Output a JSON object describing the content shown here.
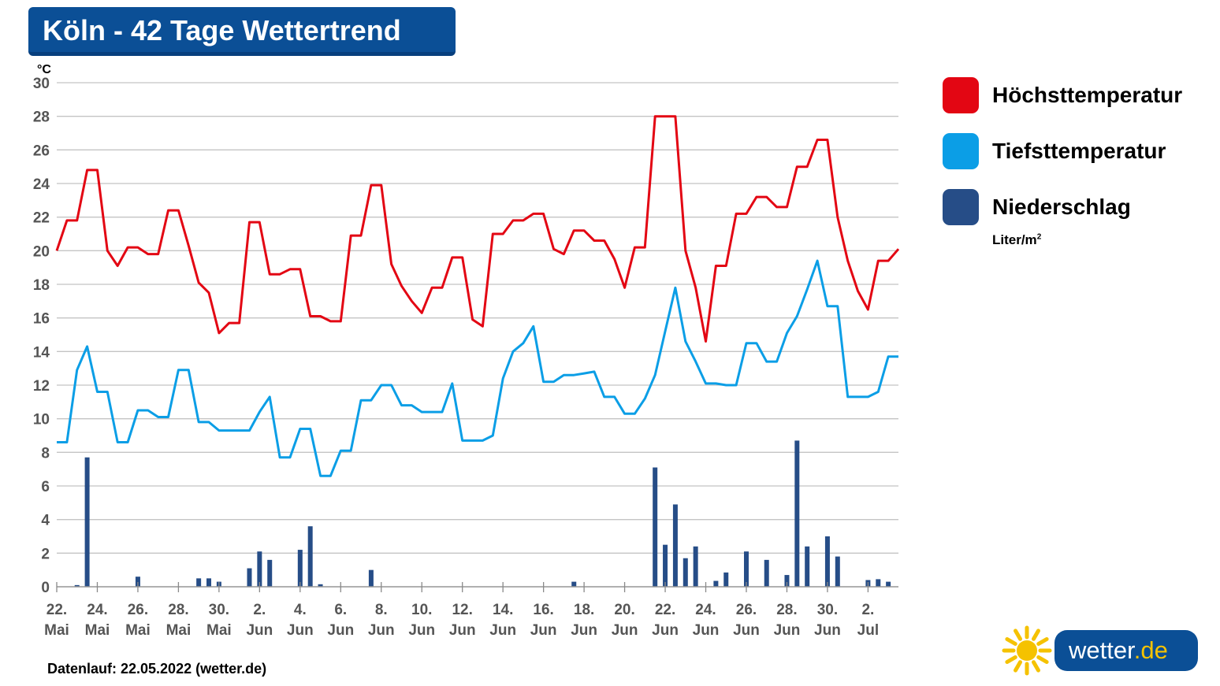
{
  "title": "Köln - 42 Tage Wettertrend",
  "footer": "Datenlauf: 22.05.2022 (wetter.de)",
  "legend": {
    "items": [
      {
        "label": "Höchsttemperatur",
        "color": "#e30613"
      },
      {
        "label": "Tiefsttemperatur",
        "color": "#0b9ee6"
      },
      {
        "label": "Niederschlag",
        "color": "#264d87"
      }
    ],
    "precip_unit": "Liter/m",
    "precip_unit_sup": "2"
  },
  "logo": {
    "name": "wetter",
    "tld": ".de",
    "icon": "sun-icon"
  },
  "chart_data": {
    "type": "line",
    "title": "Köln - 42 Tage Wettertrend",
    "y_unit": "°C",
    "ylim": [
      0,
      30
    ],
    "yticks": [
      0,
      2,
      4,
      6,
      8,
      10,
      12,
      14,
      16,
      18,
      20,
      22,
      24,
      26,
      28,
      30
    ],
    "grid": true,
    "legend_position": "right",
    "x_ticks": [
      {
        "day": 0,
        "l1": "22.",
        "l2": "Mai"
      },
      {
        "day": 2,
        "l1": "24.",
        "l2": "Mai"
      },
      {
        "day": 4,
        "l1": "26.",
        "l2": "Mai"
      },
      {
        "day": 6,
        "l1": "28.",
        "l2": "Mai"
      },
      {
        "day": 8,
        "l1": "30.",
        "l2": "Mai"
      },
      {
        "day": 10,
        "l1": "2.",
        "l2": "Jun"
      },
      {
        "day": 12,
        "l1": "4.",
        "l2": "Jun"
      },
      {
        "day": 14,
        "l1": "6.",
        "l2": "Jun"
      },
      {
        "day": 16,
        "l1": "8.",
        "l2": "Jun"
      },
      {
        "day": 18,
        "l1": "10.",
        "l2": "Jun"
      },
      {
        "day": 20,
        "l1": "12.",
        "l2": "Jun"
      },
      {
        "day": 22,
        "l1": "14.",
        "l2": "Jun"
      },
      {
        "day": 24,
        "l1": "16.",
        "l2": "Jun"
      },
      {
        "day": 26,
        "l1": "18.",
        "l2": "Jun"
      },
      {
        "day": 28,
        "l1": "20.",
        "l2": "Jun"
      },
      {
        "day": 30,
        "l1": "22.",
        "l2": "Jun"
      },
      {
        "day": 32,
        "l1": "24.",
        "l2": "Jun"
      },
      {
        "day": 34,
        "l1": "26.",
        "l2": "Jun"
      },
      {
        "day": 36,
        "l1": "28.",
        "l2": "Jun"
      },
      {
        "day": 38,
        "l1": "30.",
        "l2": "Jun"
      },
      {
        "day": 40,
        "l1": "2.",
        "l2": "Jul"
      }
    ],
    "series": [
      {
        "name": "Höchsttemperatur",
        "color": "#e30613",
        "points": [
          [
            0,
            20.0
          ],
          [
            0.5,
            21.8
          ],
          [
            1,
            21.8
          ],
          [
            1.5,
            24.8
          ],
          [
            2,
            24.8
          ],
          [
            2.5,
            20.0
          ],
          [
            3,
            19.1
          ],
          [
            3.5,
            20.2
          ],
          [
            4,
            20.2
          ],
          [
            4.5,
            19.8
          ],
          [
            5,
            19.8
          ],
          [
            5.5,
            22.4
          ],
          [
            6,
            22.4
          ],
          [
            6.5,
            20.3
          ],
          [
            7,
            18.1
          ],
          [
            7.5,
            17.5
          ],
          [
            8,
            15.1
          ],
          [
            8.5,
            15.7
          ],
          [
            9,
            15.7
          ],
          [
            9.5,
            21.7
          ],
          [
            10,
            21.7
          ],
          [
            10.5,
            18.6
          ],
          [
            11,
            18.6
          ],
          [
            11.5,
            18.9
          ],
          [
            12,
            18.9
          ],
          [
            12.5,
            16.1
          ],
          [
            13,
            16.1
          ],
          [
            13.5,
            15.8
          ],
          [
            14,
            15.8
          ],
          [
            14.5,
            20.9
          ],
          [
            15,
            20.9
          ],
          [
            15.5,
            23.9
          ],
          [
            16,
            23.9
          ],
          [
            16.5,
            19.2
          ],
          [
            17,
            17.9
          ],
          [
            17.5,
            17.0
          ],
          [
            18,
            16.3
          ],
          [
            18.5,
            17.8
          ],
          [
            19,
            17.8
          ],
          [
            19.5,
            19.6
          ],
          [
            20,
            19.6
          ],
          [
            20.5,
            15.9
          ],
          [
            21,
            15.5
          ],
          [
            21.5,
            21.0
          ],
          [
            22,
            21.0
          ],
          [
            22.5,
            21.8
          ],
          [
            23,
            21.8
          ],
          [
            23.5,
            22.2
          ],
          [
            24,
            22.2
          ],
          [
            24.5,
            20.1
          ],
          [
            25,
            19.8
          ],
          [
            25.5,
            21.2
          ],
          [
            26,
            21.2
          ],
          [
            26.5,
            20.6
          ],
          [
            27,
            20.6
          ],
          [
            27.5,
            19.5
          ],
          [
            28,
            17.8
          ],
          [
            28.5,
            20.2
          ],
          [
            29,
            20.2
          ],
          [
            29.5,
            28.0
          ],
          [
            30,
            28.0
          ],
          [
            30.5,
            28.0
          ],
          [
            31,
            20.0
          ],
          [
            31.5,
            17.8
          ],
          [
            32,
            14.6
          ],
          [
            32.5,
            19.1
          ],
          [
            33,
            19.1
          ],
          [
            33.5,
            22.2
          ],
          [
            34,
            22.2
          ],
          [
            34.5,
            23.2
          ],
          [
            35,
            23.2
          ],
          [
            35.5,
            22.6
          ],
          [
            36,
            22.6
          ],
          [
            36.5,
            25.0
          ],
          [
            37,
            25.0
          ],
          [
            37.5,
            26.6
          ],
          [
            38,
            26.6
          ],
          [
            38.5,
            22.0
          ],
          [
            39,
            19.4
          ],
          [
            39.5,
            17.6
          ],
          [
            40,
            16.5
          ],
          [
            40.5,
            19.4
          ],
          [
            41,
            19.4
          ],
          [
            41.5,
            20.1
          ]
        ]
      },
      {
        "name": "Tiefsttemperatur",
        "color": "#0b9ee6",
        "points": [
          [
            0,
            8.6
          ],
          [
            0.5,
            8.6
          ],
          [
            1,
            12.9
          ],
          [
            1.5,
            14.3
          ],
          [
            2,
            11.6
          ],
          [
            2.5,
            11.6
          ],
          [
            3,
            8.6
          ],
          [
            3.5,
            8.6
          ],
          [
            4,
            10.5
          ],
          [
            4.5,
            10.5
          ],
          [
            5,
            10.1
          ],
          [
            5.5,
            10.1
          ],
          [
            6,
            12.9
          ],
          [
            6.5,
            12.9
          ],
          [
            7,
            9.8
          ],
          [
            7.5,
            9.8
          ],
          [
            8,
            9.3
          ],
          [
            8.5,
            9.3
          ],
          [
            9,
            9.3
          ],
          [
            9.5,
            9.3
          ],
          [
            10,
            10.4
          ],
          [
            10.5,
            11.3
          ],
          [
            11,
            7.7
          ],
          [
            11.5,
            7.7
          ],
          [
            12,
            9.4
          ],
          [
            12.5,
            9.4
          ],
          [
            13,
            6.6
          ],
          [
            13.5,
            6.6
          ],
          [
            14,
            8.1
          ],
          [
            14.5,
            8.1
          ],
          [
            15,
            11.1
          ],
          [
            15.5,
            11.1
          ],
          [
            16,
            12.0
          ],
          [
            16.5,
            12.0
          ],
          [
            17,
            10.8
          ],
          [
            17.5,
            10.8
          ],
          [
            18,
            10.4
          ],
          [
            18.5,
            10.4
          ],
          [
            19,
            10.4
          ],
          [
            19.5,
            12.1
          ],
          [
            20,
            8.7
          ],
          [
            20.5,
            8.7
          ],
          [
            21,
            8.7
          ],
          [
            21.5,
            9.0
          ],
          [
            22,
            12.4
          ],
          [
            22.5,
            14.0
          ],
          [
            23,
            14.5
          ],
          [
            23.5,
            15.5
          ],
          [
            24,
            12.2
          ],
          [
            24.5,
            12.2
          ],
          [
            25,
            12.6
          ],
          [
            25.5,
            12.6
          ],
          [
            26,
            12.7
          ],
          [
            26.5,
            12.8
          ],
          [
            27,
            11.3
          ],
          [
            27.5,
            11.3
          ],
          [
            28,
            10.3
          ],
          [
            28.5,
            10.3
          ],
          [
            29,
            11.2
          ],
          [
            29.5,
            12.6
          ],
          [
            30,
            15.2
          ],
          [
            30.5,
            17.8
          ],
          [
            31,
            14.6
          ],
          [
            31.5,
            13.4
          ],
          [
            32,
            12.1
          ],
          [
            32.5,
            12.1
          ],
          [
            33,
            12.0
          ],
          [
            33.5,
            12.0
          ],
          [
            34,
            14.5
          ],
          [
            34.5,
            14.5
          ],
          [
            35,
            13.4
          ],
          [
            35.5,
            13.4
          ],
          [
            36,
            15.1
          ],
          [
            36.5,
            16.1
          ],
          [
            37,
            17.7
          ],
          [
            37.5,
            19.4
          ],
          [
            38,
            16.7
          ],
          [
            38.5,
            16.7
          ],
          [
            39,
            11.3
          ],
          [
            39.5,
            11.3
          ],
          [
            40,
            11.3
          ],
          [
            40.5,
            11.6
          ],
          [
            41,
            13.7
          ],
          [
            41.5,
            13.7
          ]
        ]
      },
      {
        "name": "Niederschlag",
        "color": "#264d87",
        "type": "bar",
        "unit": "Liter/m²",
        "points": [
          [
            1,
            0.1
          ],
          [
            1.5,
            7.7
          ],
          [
            4,
            0.6
          ],
          [
            7,
            0.5
          ],
          [
            7.5,
            0.5
          ],
          [
            8,
            0.3
          ],
          [
            9.5,
            1.1
          ],
          [
            10,
            2.1
          ],
          [
            10.5,
            1.6
          ],
          [
            12,
            2.2
          ],
          [
            12.5,
            3.6
          ],
          [
            13,
            0.15
          ],
          [
            15.5,
            1.0
          ],
          [
            25.5,
            0.3
          ],
          [
            29.5,
            7.1
          ],
          [
            30,
            2.5
          ],
          [
            30.5,
            4.9
          ],
          [
            31,
            1.7
          ],
          [
            31.5,
            2.4
          ],
          [
            32.5,
            0.35
          ],
          [
            33,
            0.85
          ],
          [
            34,
            2.1
          ],
          [
            35,
            1.6
          ],
          [
            36,
            0.7
          ],
          [
            36.5,
            8.7
          ],
          [
            37,
            2.4
          ],
          [
            38,
            3.0
          ],
          [
            38.5,
            1.8
          ],
          [
            40,
            0.4
          ],
          [
            40.5,
            0.45
          ],
          [
            41,
            0.3
          ]
        ]
      }
    ]
  }
}
